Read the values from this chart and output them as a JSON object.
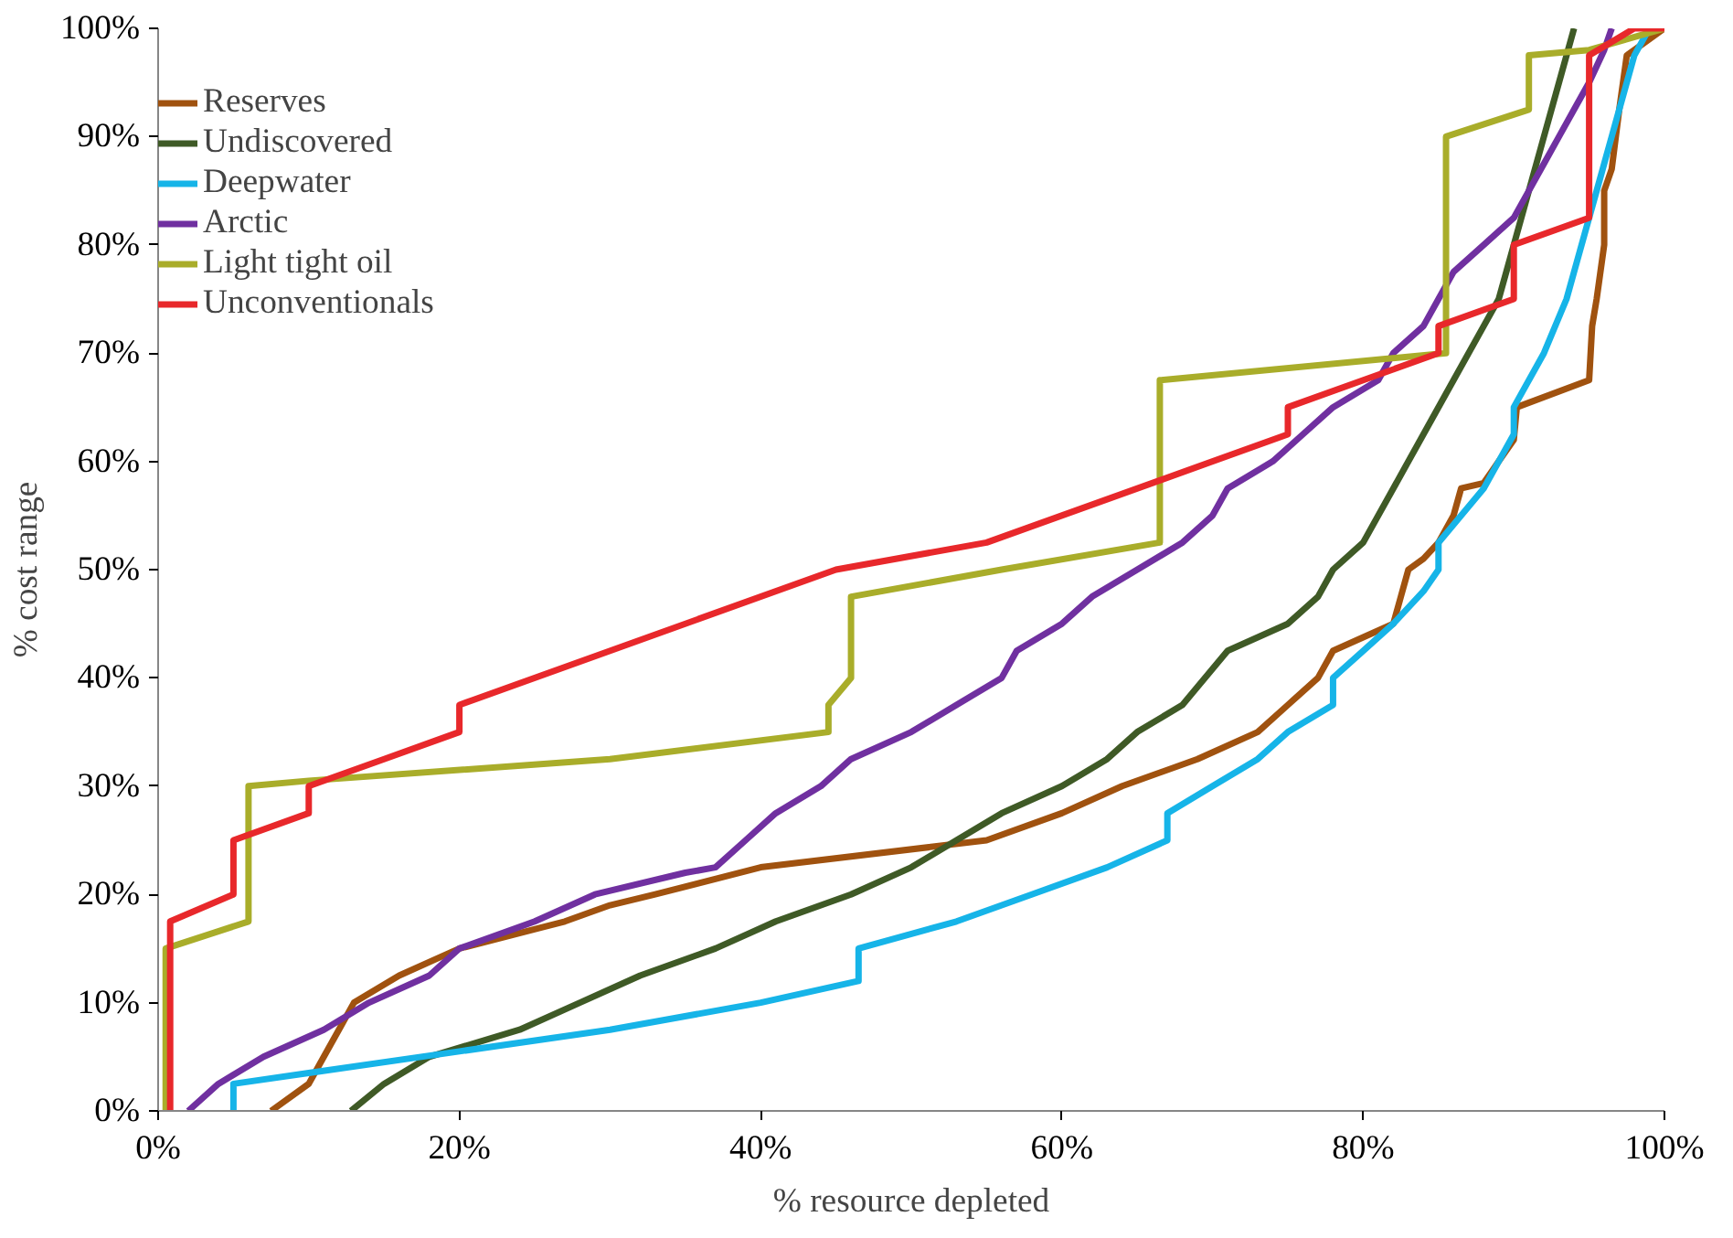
{
  "chart_data": {
    "type": "line",
    "xlabel": "% resource depleted",
    "ylabel": "% cost range",
    "xlim": [
      0,
      100
    ],
    "ylim": [
      0,
      100
    ],
    "xticks": [
      {
        "value": 0,
        "label": "0%"
      },
      {
        "value": 20,
        "label": "20%"
      },
      {
        "value": 40,
        "label": "40%"
      },
      {
        "value": 60,
        "label": "60%"
      },
      {
        "value": 80,
        "label": "80%"
      },
      {
        "value": 100,
        "label": "100%"
      }
    ],
    "yticks": [
      {
        "value": 0,
        "label": "0%"
      },
      {
        "value": 10,
        "label": "10%"
      },
      {
        "value": 20,
        "label": "20%"
      },
      {
        "value": 30,
        "label": "30%"
      },
      {
        "value": 40,
        "label": "40%"
      },
      {
        "value": 50,
        "label": "50%"
      },
      {
        "value": 60,
        "label": "60%"
      },
      {
        "value": 70,
        "label": "70%"
      },
      {
        "value": 80,
        "label": "80%"
      },
      {
        "value": 90,
        "label": "90%"
      },
      {
        "value": 100,
        "label": "100%"
      }
    ],
    "grid": false,
    "legend": "top left",
    "marker": "none",
    "line_style": "solid",
    "series": [
      {
        "name": "Reserves",
        "color": "#a0520f",
        "x": [
          7.5,
          10,
          11,
          12,
          13,
          16,
          20,
          27,
          30,
          33,
          40,
          55,
          60,
          64,
          69,
          73,
          75,
          77,
          78,
          82,
          82.5,
          83,
          84,
          85,
          86,
          86.5,
          88,
          89,
          90,
          90.2,
          95,
          95.2,
          95.5,
          96,
          96,
          96.5,
          97,
          97.5,
          100
        ],
        "values": [
          0,
          2.5,
          5,
          7.5,
          10,
          12.5,
          15,
          17.5,
          19,
          20,
          22.5,
          25,
          27.5,
          30,
          32.5,
          35,
          37.5,
          40,
          42.5,
          45,
          47.5,
          50,
          51,
          52.5,
          55,
          57.5,
          58,
          60,
          62,
          65,
          67.5,
          72.5,
          75,
          80,
          85,
          87,
          92.5,
          97.5,
          100
        ]
      },
      {
        "name": "Undiscovered",
        "color": "#3f5a26",
        "x": [
          12.8,
          15,
          18,
          24,
          28,
          32,
          37,
          41,
          46,
          50,
          53,
          56,
          60,
          63,
          65,
          68,
          71,
          75,
          77,
          78,
          80,
          82,
          84,
          86,
          88,
          89,
          91,
          92,
          93,
          94
        ],
        "values": [
          0,
          2.5,
          5,
          7.5,
          10,
          12.5,
          15,
          17.5,
          20,
          22.5,
          25,
          27.5,
          30,
          32.5,
          35,
          37.5,
          42.5,
          45,
          47.5,
          50,
          52.5,
          57.5,
          62.5,
          67.5,
          72.5,
          75,
          85,
          90,
          95,
          100
        ]
      },
      {
        "name": "Deepwater",
        "color": "#16b4e8",
        "x": [
          5,
          5,
          10,
          20,
          30,
          40,
          46.5,
          46.5,
          53,
          58,
          63,
          67,
          67,
          70,
          73,
          75,
          78,
          78,
          80,
          82,
          84,
          85,
          85,
          88,
          90,
          90,
          92,
          93.5,
          94,
          95,
          96,
          96.5,
          97,
          98,
          99
        ],
        "values": [
          0,
          2.5,
          3.5,
          5.5,
          7.5,
          10,
          12,
          15,
          17.5,
          20,
          22.5,
          25,
          27.5,
          30,
          32.5,
          35,
          37.5,
          40,
          42.5,
          45,
          48,
          50,
          52.5,
          57.5,
          62.5,
          65,
          70,
          75,
          77.5,
          82.5,
          87.5,
          90,
          92.5,
          97.5,
          100
        ]
      },
      {
        "name": "Arctic",
        "color": "#7030a0",
        "x": [
          2,
          4,
          7,
          11,
          14,
          18,
          20,
          25,
          29,
          35,
          37,
          39,
          41,
          44,
          46,
          50,
          53,
          56,
          57,
          60,
          62,
          65,
          68,
          70,
          71,
          74,
          76,
          78,
          81,
          82,
          84,
          85,
          86,
          88,
          90,
          91,
          92,
          93,
          94,
          95,
          96,
          96.5
        ],
        "values": [
          0,
          2.5,
          5,
          7.5,
          10,
          12.5,
          15,
          17.5,
          20,
          22,
          22.5,
          25,
          27.5,
          30,
          32.5,
          35,
          37.5,
          40,
          42.5,
          45,
          47.5,
          50,
          52.5,
          55,
          57.5,
          60,
          62.5,
          65,
          67.5,
          70,
          72.5,
          75,
          77.5,
          80,
          82.5,
          85,
          87.5,
          90,
          92.5,
          95,
          98,
          100
        ]
      },
      {
        "name": "Light tight oil",
        "color": "#a9ad2a",
        "x": [
          0.5,
          0.5,
          6,
          6,
          10,
          30,
          44.5,
          44.5,
          46,
          46,
          56,
          66.5,
          66.5,
          85.5,
          85.5,
          91,
          91,
          95,
          100
        ],
        "values": [
          0,
          15,
          17.5,
          30,
          30.5,
          32.5,
          35,
          37.5,
          40,
          47.5,
          50,
          52.5,
          67.5,
          70,
          90,
          92.5,
          97.5,
          98,
          100
        ]
      },
      {
        "name": "Unconventionals",
        "color": "#e8282b",
        "x": [
          0.8,
          0.8,
          5,
          5,
          10,
          10,
          15,
          20,
          20,
          45,
          55,
          75,
          75,
          85,
          85,
          90,
          90,
          95,
          95,
          98,
          100
        ],
        "values": [
          0,
          17.5,
          20,
          25,
          27.5,
          30,
          32.5,
          35,
          37.5,
          50,
          52.5,
          62.5,
          65,
          70,
          72.5,
          75,
          80,
          82.5,
          97.5,
          100,
          100
        ]
      }
    ]
  }
}
